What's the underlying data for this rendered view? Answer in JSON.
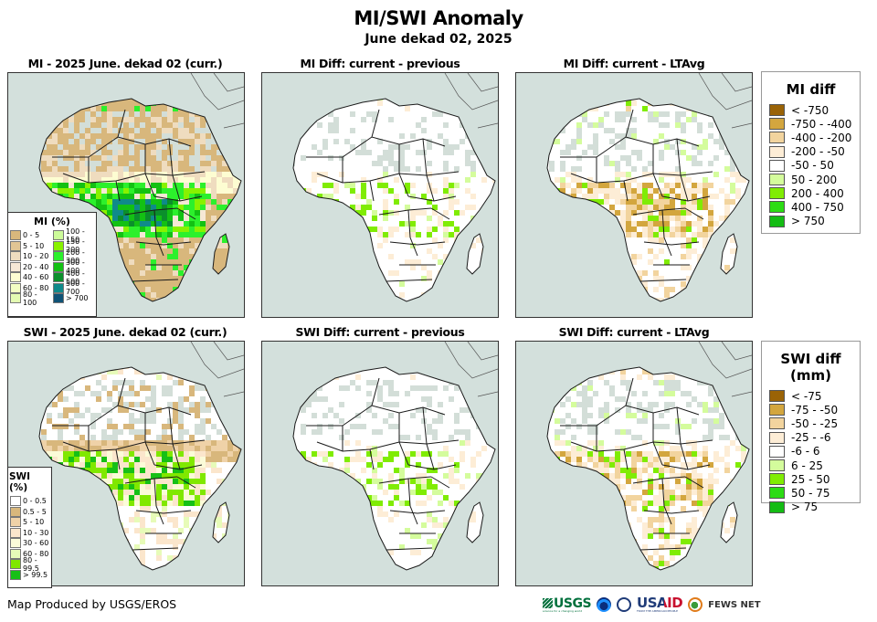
{
  "header": {
    "title": "MI/SWI Anomaly",
    "subtitle": "June dekad 02, 2025"
  },
  "panels": [
    {
      "title": "MI - 2025 June. dekad 02 (curr.)",
      "kind": "mi-current"
    },
    {
      "title": "MI Diff: current - previous",
      "kind": "mi-diff-prev"
    },
    {
      "title": "MI Diff: current - LTAvg",
      "kind": "mi-diff-lta"
    },
    {
      "title": "SWI - 2025 June. dekad 02 (curr.)",
      "kind": "swi-current"
    },
    {
      "title": "SWI Diff: current - previous",
      "kind": "swi-diff-prev"
    },
    {
      "title": "SWI Diff: current - LTAvg",
      "kind": "swi-diff-lta"
    }
  ],
  "mi_legend": {
    "title": "MI (%)",
    "items": [
      {
        "label": "0 - 5",
        "color": "#d8b77c"
      },
      {
        "label": "5 - 10",
        "color": "#e1c594"
      },
      {
        "label": "10 - 20",
        "color": "#efdcbf"
      },
      {
        "label": "20 - 40",
        "color": "#f6e8d6"
      },
      {
        "label": "40 - 60",
        "color": "#fdfdd2"
      },
      {
        "label": "60 - 80",
        "color": "#f3fdc3"
      },
      {
        "label": "80 - 100",
        "color": "#e4fbb2"
      },
      {
        "label": "100 - 150",
        "color": "#ccfb99"
      },
      {
        "label": "150 - 200",
        "color": "#88f200"
      },
      {
        "label": "200 - 300",
        "color": "#2cf02c"
      },
      {
        "label": "300 - 400",
        "color": "#13c113"
      },
      {
        "label": "400 - 500",
        "color": "#0b8f2c"
      },
      {
        "label": "500 - 700",
        "color": "#0f8a8a"
      },
      {
        "label": "> 700",
        "color": "#0f5276"
      }
    ]
  },
  "swi_legend": {
    "title": "SWI (%)",
    "items": [
      {
        "label": "0 - 0.5",
        "color": "#ffffff"
      },
      {
        "label": "0.5 - 5",
        "color": "#d8b77c"
      },
      {
        "label": "5 - 10",
        "color": "#efd2a8"
      },
      {
        "label": "10 - 30",
        "color": "#fbe6cc"
      },
      {
        "label": "30 - 60",
        "color": "#fbfbd8"
      },
      {
        "label": "60 - 80",
        "color": "#e7fbb8"
      },
      {
        "label": "80 - 99.5",
        "color": "#80e800"
      },
      {
        "label": "> 99.5",
        "color": "#16c016"
      }
    ]
  },
  "mi_diff_legend": {
    "title": "MI diff",
    "items": [
      {
        "label": "< -750",
        "color": "#9a6306"
      },
      {
        "label": "-750 - -400",
        "color": "#d3a63e"
      },
      {
        "label": "-400 - -200",
        "color": "#f2d49e"
      },
      {
        "label": "-200 - -50",
        "color": "#fdedd6"
      },
      {
        "label": "-50 - 50",
        "color": "#ffffff"
      },
      {
        "label": "50 - 200",
        "color": "#d4fc9c"
      },
      {
        "label": "200 - 400",
        "color": "#80ec04"
      },
      {
        "label": "400 - 750",
        "color": "#2cdc14"
      },
      {
        "label": "> 750",
        "color": "#14bc14"
      }
    ]
  },
  "swi_diff_legend": {
    "title": "SWI diff (mm)",
    "items": [
      {
        "label": "< -75",
        "color": "#9a6306"
      },
      {
        "label": "-75 - -50",
        "color": "#d3a63e"
      },
      {
        "label": "-50 - -25",
        "color": "#f2d49e"
      },
      {
        "label": "-25 - -6",
        "color": "#fdedd6"
      },
      {
        "label": "-6 - 6",
        "color": "#ffffff"
      },
      {
        "label": "6 - 25",
        "color": "#d4fc9c"
      },
      {
        "label": "25 - 50",
        "color": "#80ec04"
      },
      {
        "label": "50 - 75",
        "color": "#2cdc14"
      },
      {
        "label": "> 75",
        "color": "#14bc14"
      }
    ]
  },
  "footer": {
    "credit": "Map Produced by USGS/EROS",
    "logos": [
      "USGS",
      "NOAA",
      "USAID",
      "FEWS NET"
    ],
    "usgs_tagline": "science for a changing world",
    "usaid_tagline": "FROM THE AMERICAN PEOPLE"
  },
  "colors": {
    "ocean": "#d3e0dc",
    "no_data_land": "#d3ded8",
    "border": "#1a1a1a"
  }
}
